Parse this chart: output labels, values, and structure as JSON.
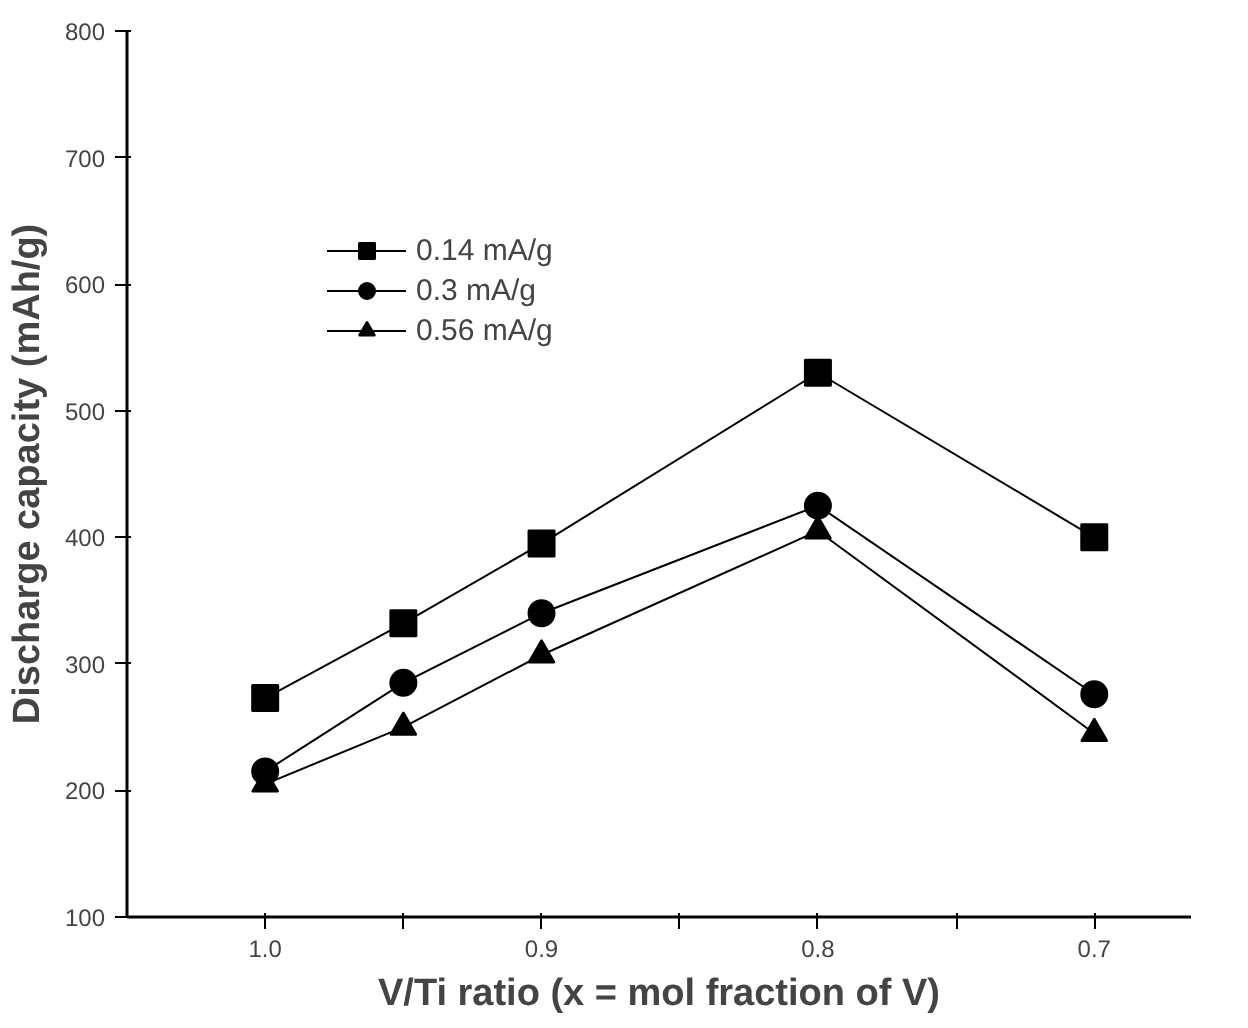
{
  "chart_data": {
    "type": "line",
    "xlabel": "V/Ti ratio (x = mol fraction of V)",
    "ylabel": "Discharge capacity (mAh/g)",
    "x": [
      1.0,
      0.95,
      0.9,
      0.8,
      0.7
    ],
    "series": [
      {
        "name": "0.14 mA/g",
        "color": "#000000",
        "marker": "square",
        "values": [
          273,
          332,
          395,
          530,
          400
        ]
      },
      {
        "name": "0.3 mA/g",
        "color": "#000000",
        "marker": "circle",
        "values": [
          215,
          285,
          340,
          425,
          276
        ]
      },
      {
        "name": "0.56 mA/g",
        "color": "#000000",
        "marker": "triangle",
        "values": [
          205,
          250,
          307,
          405,
          245
        ]
      }
    ],
    "xlim": [
      1.05,
      0.665
    ],
    "ylim": [
      100,
      800
    ],
    "xticks": [
      {
        "value": 1.0,
        "label": "1.0"
      },
      {
        "value": 0.95,
        "label": null
      },
      {
        "value": 0.9,
        "label": "0.9"
      },
      {
        "value": 0.85,
        "label": null
      },
      {
        "value": 0.8,
        "label": "0.8"
      },
      {
        "value": 0.75,
        "label": null
      },
      {
        "value": 0.7,
        "label": "0.7"
      }
    ],
    "yticks": [
      100,
      200,
      300,
      400,
      500,
      600,
      700,
      800
    ],
    "grid": false,
    "legend": "top left",
    "line_style": "solid"
  }
}
